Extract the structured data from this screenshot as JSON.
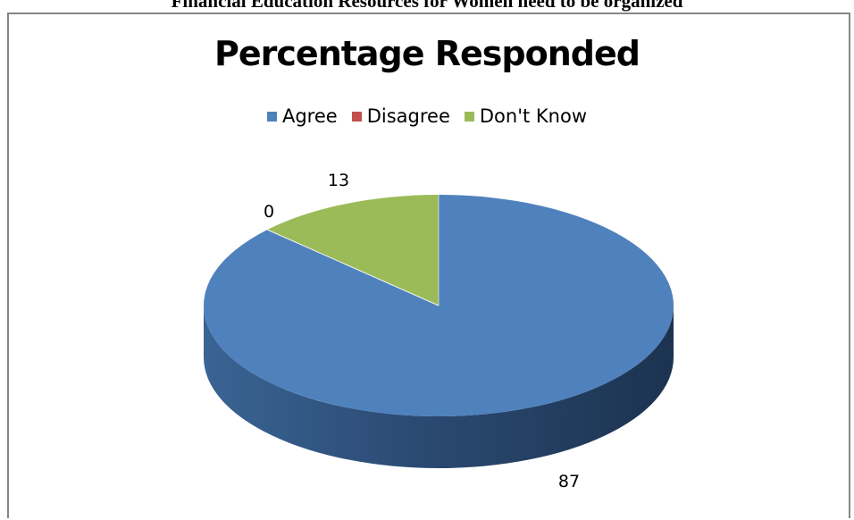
{
  "page_heading": "Financial Education Resources for Women need to be organized",
  "chart_data": {
    "type": "pie",
    "title": "Percentage Responded",
    "categories": [
      "Agree",
      "Disagree",
      "Don't Know"
    ],
    "values": [
      87,
      0,
      13
    ],
    "data_labels": [
      "87",
      "0",
      "13"
    ],
    "colors": [
      "#4f81bd",
      "#c0504d",
      "#9bbb59"
    ],
    "legend_position": "top",
    "style": "3d"
  }
}
